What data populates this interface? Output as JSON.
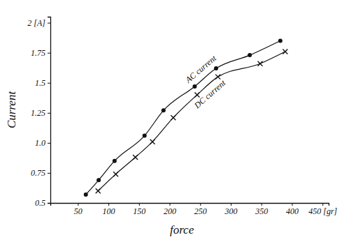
{
  "chart_data": {
    "type": "line",
    "x_label": "force",
    "y_label": "Current",
    "xlim": [
      5,
      460
    ],
    "xticks": [
      50,
      100,
      150,
      200,
      250,
      300,
      350,
      400,
      {
        "value": 450,
        "label": "450 [gr]"
      }
    ],
    "ylim": [
      0.5,
      2.05
    ],
    "yticks": [
      0.5,
      0.75,
      {
        "value": 1,
        "label": "1.0"
      },
      1.25,
      1.5,
      1.75,
      {
        "value": 2,
        "label": "2 [A]"
      }
    ],
    "grid": false,
    "series": [
      {
        "name": "AC current",
        "color": "#111111",
        "marker": "circle",
        "line_style": "solid",
        "x": [
          63,
          84,
          110,
          159,
          190,
          241,
          276,
          331,
          381
        ],
        "values": [
          0.57,
          0.69,
          0.85,
          1.06,
          1.27,
          1.47,
          1.62,
          1.73,
          1.85
        ]
      },
      {
        "name": "DC current",
        "color": "#111111",
        "marker": "x",
        "line_style": "solid",
        "x": [
          83,
          112,
          144,
          172,
          206,
          245,
          279,
          348,
          389
        ],
        "values": [
          0.6,
          0.74,
          0.88,
          1.01,
          1.21,
          1.4,
          1.55,
          1.66,
          1.76
        ]
      }
    ]
  }
}
